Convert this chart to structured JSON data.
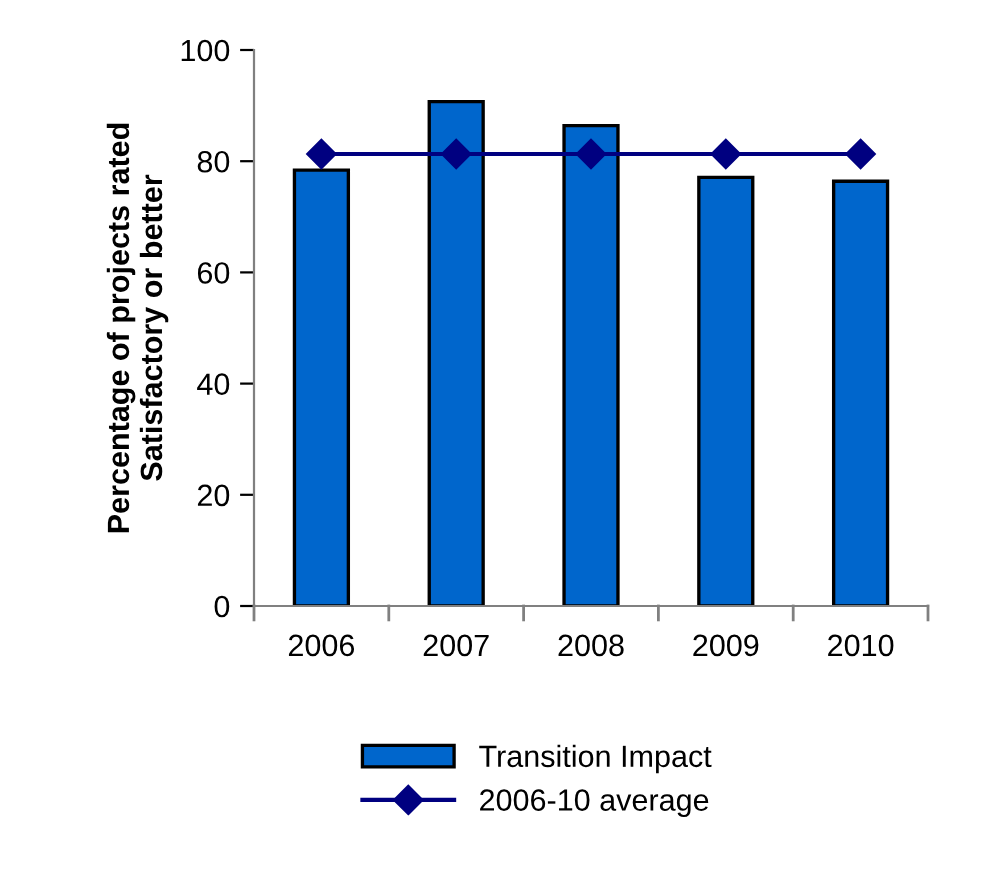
{
  "chart_data": {
    "type": "bar",
    "ylabel": "Percentage of projects rated\nSatisfactory or better",
    "categories": [
      "2006",
      "2007",
      "2008",
      "2009",
      "2010"
    ],
    "series": [
      {
        "name": "Transition Impact",
        "color": "#0066cc",
        "values": [
          78.4,
          90.7,
          86.4,
          77.1,
          76.4
        ]
      },
      {
        "name": "2006-10 average",
        "type": "line",
        "color": "#000080",
        "marker": "diamond",
        "values": [
          81.3,
          81.3,
          81.3,
          81.3,
          81.3
        ]
      }
    ],
    "ylim": [
      0,
      100
    ],
    "yticks": [
      0,
      20,
      40,
      60,
      80,
      100
    ],
    "grid": false,
    "legend": "bottom"
  }
}
